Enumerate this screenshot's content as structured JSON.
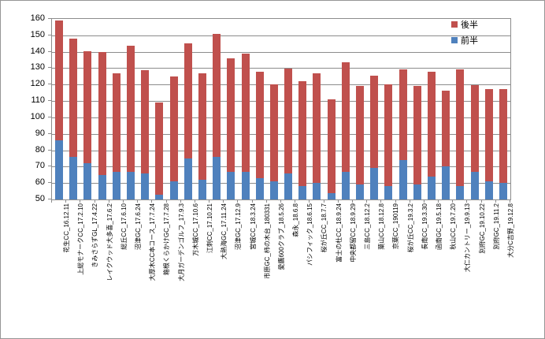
{
  "chart_data": {
    "type": "bar",
    "stacked": true,
    "title": "",
    "xlabel": "",
    "ylabel": "",
    "ylim": [
      50,
      160
    ],
    "ytick_step": 10,
    "grid": true,
    "legend_position": "top-right",
    "categories": [
      "花生CC_16.12.11",
      "上総モナークCC_17.2.10",
      "きみさらずGL_17.4.22",
      "レイクウッド大多喜_17.6.2",
      "総丘CC_17.6.10",
      "沼津GC_17.6.24",
      "大厚木CC本コース_17.7.24",
      "箱根くらかけGC_17.7.28",
      "大月ガーデンゴルフ_17.9.3",
      "万木城CC_17.10.6",
      "江刺CC_17.10.21",
      "大熱海GC_17.11.24",
      "沼津GC_17.12.9",
      "宮城CC_18.3.24",
      "市原GC_柿の木台_180331",
      "愛鷹600クラブ_18.5.26",
      "森永_18.6.8",
      "パシフィック_18.6.15",
      "桜が丘CC_18.7.7",
      "富士の杜CC_18.9.24",
      "中央都留CC_18.9.29",
      "三島CC_18.12.2",
      "葉山CC_18.12.8",
      "京葉CC_190119",
      "桜が丘CC_19.3.2",
      "長南CC_19.3.30",
      "函南GC_19.5.18",
      "秋山CC_19.7.20",
      "大仁カントリー_19.9.13",
      "別府GC_19.10.22",
      "別府GC_19.11.2",
      "大分C吉野_19.12.8"
    ],
    "series": [
      {
        "name": "後半",
        "color": "#c0504d",
        "stack_order": "top",
        "values": [
          73,
          72,
          68,
          75,
          60,
          77,
          63,
          56,
          64,
          70,
          65,
          75,
          69,
          72,
          65,
          59,
          64,
          64,
          67,
          57,
          67,
          60,
          56,
          62,
          55,
          60,
          64,
          46,
          71,
          53,
          56,
          57
        ]
      },
      {
        "name": "前半",
        "color": "#4f81bd",
        "stack_order": "bottom",
        "values": [
          86,
          76,
          72,
          65,
          67,
          67,
          66,
          53,
          61,
          75,
          62,
          76,
          67,
          67,
          63,
          61,
          66,
          58,
          60,
          54,
          67,
          59,
          69,
          58,
          74,
          59,
          64,
          70,
          58,
          67,
          61,
          60
        ]
      }
    ],
    "totals": [
      159,
      148,
      140,
      140,
      127,
      144,
      129,
      109,
      125,
      145,
      127,
      151,
      136,
      139,
      128,
      120,
      130,
      122,
      127,
      111,
      134,
      119,
      125,
      120,
      129,
      119,
      128,
      116,
      129,
      120,
      117,
      117
    ],
    "colors": {
      "grid": "#8c8c8c",
      "axis": "#8c8c8c",
      "background": "#ffffff",
      "text": "#000000"
    }
  },
  "legend": {
    "items": [
      {
        "label": "後半",
        "color": "#c0504d"
      },
      {
        "label": "前半",
        "color": "#4f81bd"
      }
    ]
  }
}
